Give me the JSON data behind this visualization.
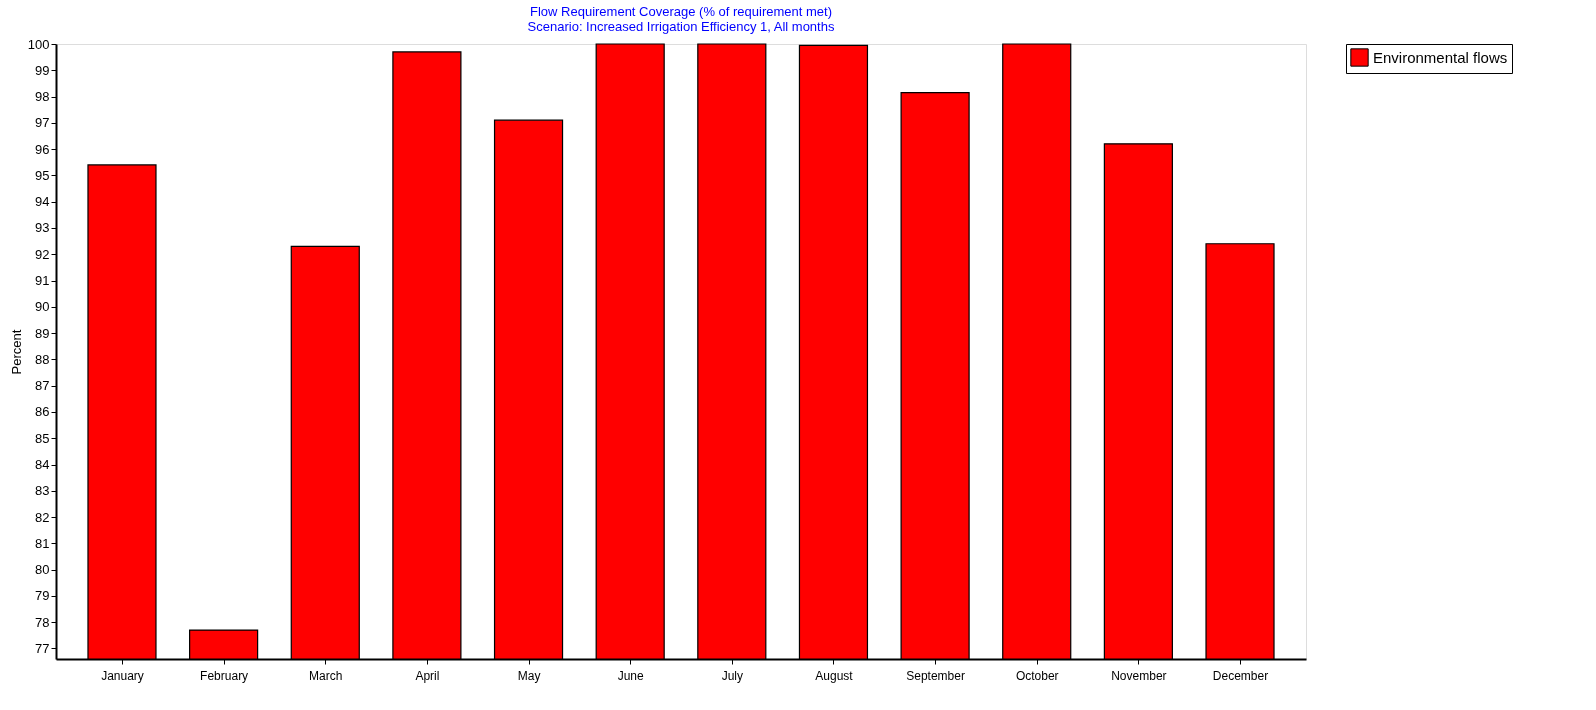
{
  "chart_data": {
    "type": "bar",
    "title": [
      "Flow  Requirement Coverage (% of requirement met)",
      "Scenario: Increased Irrigation Efficiency 1,  All months"
    ],
    "ylabel": "Percent",
    "categories": [
      "January",
      "February",
      "March",
      "April",
      "May",
      "June",
      "July",
      "August",
      "September",
      "October",
      "November",
      "December"
    ],
    "series": [
      {
        "name": "Environmental flows",
        "color": "#ff0000",
        "values": [
          95.4,
          77.7,
          92.3,
          99.7,
          97.1,
          100,
          100,
          99.95,
          98.15,
          100,
          96.2,
          92.4
        ]
      }
    ],
    "ylim": [
      76.6,
      100
    ],
    "yticks": [
      77,
      78,
      79,
      80,
      81,
      82,
      83,
      84,
      85,
      86,
      87,
      88,
      89,
      90,
      91,
      92,
      93,
      94,
      95,
      96,
      97,
      98,
      99,
      100
    ],
    "grid": false,
    "legend": "top right"
  }
}
